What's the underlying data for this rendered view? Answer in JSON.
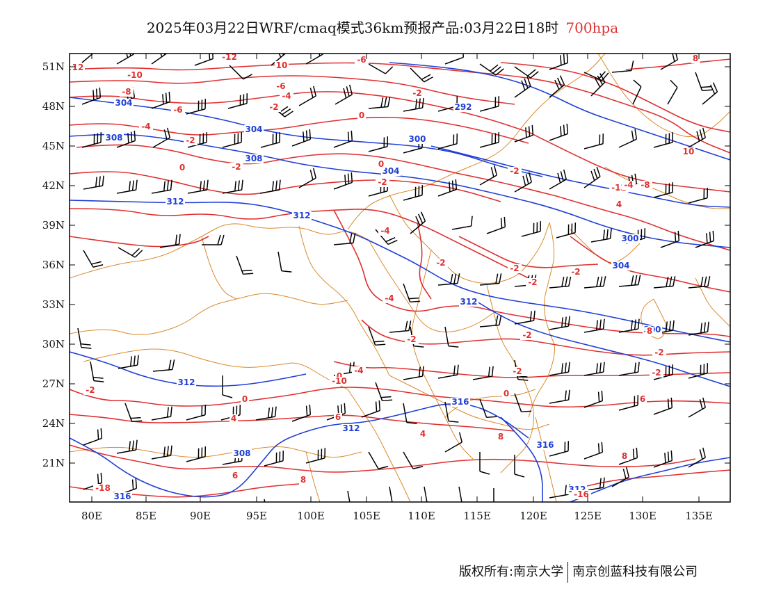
{
  "title": {
    "main": "2025年03月22日WRF/cmaq模式36km预报产品:03月22日18时",
    "level": "700hpa"
  },
  "footer": {
    "left": "版权所有:南京大学",
    "right": "南京创蓝科技有限公司"
  },
  "colors": {
    "temperature_contour": "#e03030",
    "height_contour": "#1f3fd6",
    "boundaries": "#d98a2b",
    "wind_barbs": "#000000",
    "frame": "#000000"
  },
  "axes": {
    "lat_labels": [
      "51N",
      "48N",
      "45N",
      "42N",
      "39N",
      "36N",
      "33N",
      "30N",
      "27N",
      "24N",
      "21N"
    ],
    "lon_labels": [
      "80E",
      "85E",
      "90E",
      "95E",
      "100E",
      "105E",
      "110E",
      "115E",
      "120E",
      "125E",
      "130E",
      "135E"
    ]
  },
  "height_labels": [
    "304",
    "308",
    "300",
    "304",
    "308",
    "304",
    "312",
    "312",
    "312",
    "300",
    "304",
    "312",
    "308",
    "312",
    "316",
    "316",
    "316",
    "316",
    "300",
    "292",
    "312"
  ],
  "temperature_labels": [
    "12",
    "-10",
    "-12",
    "-8",
    "-6",
    "10",
    "-6",
    "-6",
    "-4",
    "-2",
    "-2",
    "-4",
    "-2",
    "0",
    "-2",
    "0",
    "-2",
    "0",
    "-2",
    "-4",
    "-2",
    "-2",
    "-2",
    "-2",
    "-4",
    "-12",
    "-8",
    "-2",
    "-2",
    "-2",
    "-2",
    "-2",
    "0",
    "0",
    "0",
    "-2",
    "4",
    "4",
    "6",
    "8",
    "8",
    "6",
    "8",
    "10",
    "4",
    "8",
    "-18",
    "-16",
    "-4",
    "-10",
    "-4",
    "8",
    "6"
  ]
}
